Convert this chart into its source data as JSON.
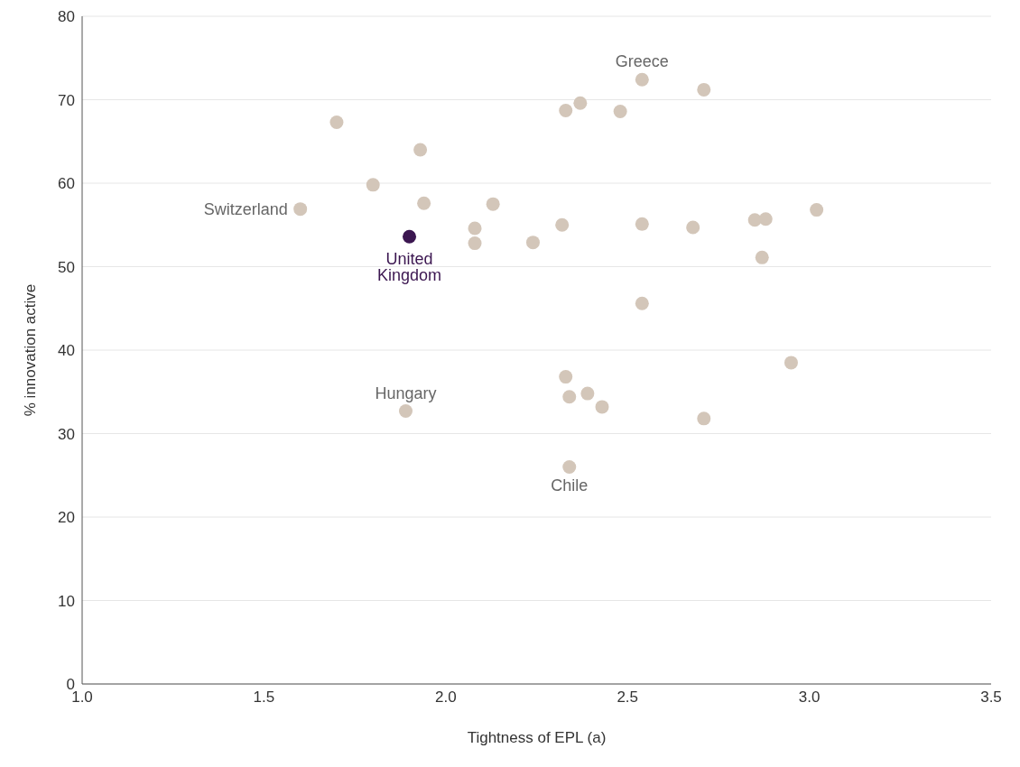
{
  "chart_data": {
    "type": "scatter",
    "xlabel": "Tightness of EPL (a)",
    "ylabel": "% innovation active",
    "series": [
      {
        "color": "#d3c6b9",
        "x": [
          1.7,
          1.6,
          1.8,
          1.93,
          1.94,
          1.89,
          2.08,
          2.08,
          2.13,
          2.24,
          2.32,
          2.33,
          2.37,
          2.48,
          2.54,
          2.71,
          2.54,
          2.68,
          2.54,
          2.85,
          2.88,
          3.02,
          2.87,
          2.95,
          2.33,
          2.34,
          2.39,
          2.43,
          2.71,
          2.34
        ],
        "values": [
          67.3,
          56.9,
          59.8,
          64.0,
          57.6,
          32.7,
          54.6,
          52.8,
          57.5,
          52.9,
          55.0,
          68.7,
          69.6,
          68.6,
          72.4,
          71.2,
          55.1,
          54.7,
          45.6,
          55.6,
          55.7,
          56.8,
          51.1,
          38.5,
          36.8,
          34.4,
          34.8,
          33.2,
          31.8,
          26.0
        ]
      },
      {
        "name": "United Kingdom",
        "color": "#3b1650",
        "x": [
          1.9
        ],
        "values": [
          53.6
        ]
      }
    ],
    "annotations": [
      {
        "text": "Greece",
        "x": 2.54,
        "y": 72.4
      },
      {
        "text": "Switzerland",
        "x": 1.6,
        "y": 56.9
      },
      {
        "text": "Hungary",
        "x": 1.89,
        "y": 32.7
      },
      {
        "text": "Chile",
        "x": 2.34,
        "y": 26.0
      }
    ],
    "xlim": [
      1.0,
      3.5
    ],
    "xticks": [
      {
        "value": 1.0,
        "label": "1.0"
      },
      {
        "value": 1.5,
        "label": "1.5"
      },
      {
        "value": 2.0,
        "label": "2.0"
      },
      {
        "value": 2.5,
        "label": "2.5"
      },
      {
        "value": 3.0,
        "label": "3.0"
      },
      {
        "value": 3.5,
        "label": "3.5"
      }
    ],
    "ylim": [
      0,
      80
    ],
    "yticks": [
      0,
      10,
      20,
      30,
      40,
      50,
      60,
      70,
      80
    ],
    "grid": "y",
    "legend": false,
    "marker": "circle"
  }
}
